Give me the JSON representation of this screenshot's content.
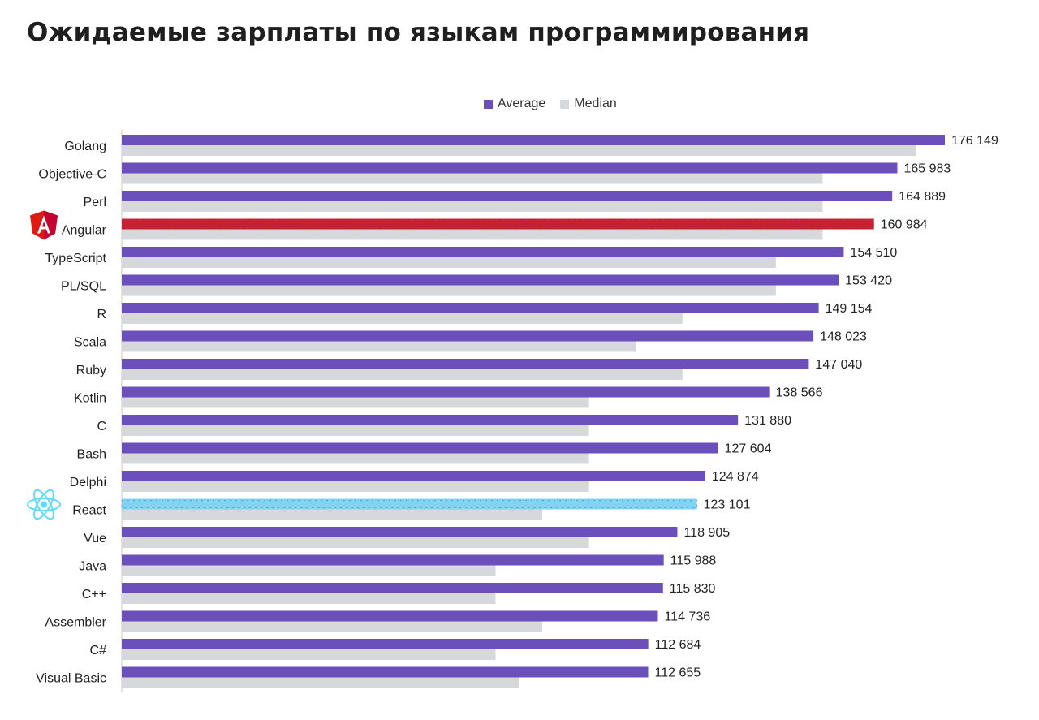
{
  "title": "Ожидаемые зарплаты по языкам программирования",
  "chart_data": {
    "type": "bar",
    "orientation": "horizontal",
    "legend_position": "top-center",
    "xlim": [
      0,
      180000
    ],
    "grid": false,
    "categories": [
      "Golang",
      "Objective-C",
      "Perl",
      "Angular",
      "TypeScript",
      "PL/SQL",
      "R",
      "Scala",
      "Ruby",
      "Kotlin",
      "C",
      "Bash",
      "Delphi",
      "React",
      "Vue",
      "Java",
      "C++",
      "Assembler",
      "C#",
      "Visual Basic"
    ],
    "series": [
      {
        "name": "Average",
        "color": "#6b4fbb",
        "values": [
          176149,
          165983,
          164889,
          160984,
          154510,
          153420,
          149154,
          148023,
          147040,
          138566,
          131880,
          127604,
          124874,
          123101,
          118905,
          115988,
          115830,
          114736,
          112684,
          112655
        ],
        "labels": [
          "176 149",
          "165 983",
          "164 889",
          "160 984",
          "154 510",
          "153 420",
          "149 154",
          "148 023",
          "147 040",
          "138 566",
          "131 880",
          "127 604",
          "124 874",
          "123 101",
          "118 905",
          "115 988",
          "115 830",
          "114 736",
          "112 684",
          "112 655"
        ]
      },
      {
        "name": "Median",
        "color": "#d6d8db",
        "values": [
          170000,
          150000,
          150000,
          150000,
          140000,
          140000,
          120000,
          110000,
          120000,
          100000,
          100000,
          100000,
          100000,
          90000,
          100000,
          80000,
          80000,
          90000,
          80000,
          85000
        ]
      }
    ],
    "highlights": {
      "Angular": {
        "bar_color": "#c8202f",
        "icon": "angular-logo-icon"
      },
      "React": {
        "bar_color": "#7fd4f2",
        "icon": "react-logo-icon"
      }
    }
  }
}
